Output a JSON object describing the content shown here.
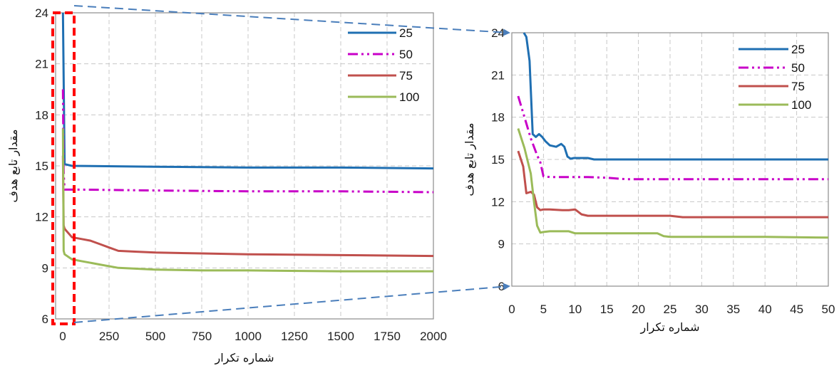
{
  "chart_data": [
    {
      "type": "line",
      "xlabel": "شماره تکرار",
      "ylabel": "مقدار تابع هدف",
      "xlim": [
        0,
        2000
      ],
      "ylim": [
        6,
        24
      ],
      "x_ticks": [
        "0",
        "250",
        "500",
        "750",
        "1000",
        "1250",
        "1500",
        "1750",
        "2000"
      ],
      "y_ticks": [
        "6",
        "9",
        "12",
        "15",
        "18",
        "21",
        "24"
      ],
      "grid": true,
      "legend_position": "top-right",
      "series": [
        {
          "name": "25",
          "color": "#1f6fb2",
          "dash": "solid",
          "x": [
            1,
            10,
            50,
            500,
            1000,
            1500,
            2000
          ],
          "y": [
            24,
            15.1,
            15.0,
            14.95,
            14.9,
            14.9,
            14.85
          ]
        },
        {
          "name": "50",
          "color": "#c800c8",
          "dash": "dashdotdot",
          "x": [
            1,
            5,
            10,
            100,
            500,
            1000,
            1500,
            2000
          ],
          "y": [
            19.5,
            14.6,
            13.6,
            13.6,
            13.55,
            13.5,
            13.5,
            13.45
          ]
        },
        {
          "name": "75",
          "color": "#c0504d",
          "dash": "solid",
          "x": [
            1,
            5,
            10,
            50,
            100,
            150,
            200,
            250,
            300,
            400,
            500,
            750,
            1000,
            1500,
            2000
          ],
          "y": [
            15.6,
            11.5,
            11.3,
            10.8,
            10.7,
            10.6,
            10.4,
            10.2,
            10.0,
            9.95,
            9.9,
            9.85,
            9.8,
            9.75,
            9.7
          ]
        },
        {
          "name": "100",
          "color": "#9bbb59",
          "dash": "solid",
          "x": [
            1,
            5,
            10,
            50,
            100,
            200,
            300,
            400,
            500,
            750,
            1000,
            1500,
            2000
          ],
          "y": [
            17.2,
            10.0,
            9.8,
            9.5,
            9.4,
            9.2,
            9.0,
            8.95,
            8.9,
            8.85,
            8.85,
            8.8,
            8.8
          ]
        }
      ]
    },
    {
      "type": "line",
      "xlabel": "شماره تکرار",
      "ylabel": "مقدار تابع هدف",
      "xlim": [
        0,
        50
      ],
      "ylim": [
        6,
        24
      ],
      "x_ticks": [
        "0",
        "5",
        "10",
        "15",
        "20",
        "25",
        "30",
        "35",
        "40",
        "45",
        "50"
      ],
      "y_ticks": [
        "6",
        "9",
        "12",
        "15",
        "18",
        "21",
        "24"
      ],
      "grid": true,
      "legend_position": "top-right",
      "series": [
        {
          "name": "25",
          "color": "#1f6fb2",
          "dash": "solid",
          "x": [
            1.9,
            2.3,
            2.8,
            3.3,
            3.8,
            4.3,
            4.8,
            5.3,
            6.0,
            7.0,
            7.8,
            8.3,
            8.8,
            9.3,
            9.8,
            10.5,
            12,
            13,
            20,
            30,
            40,
            50
          ],
          "y": [
            24,
            23.7,
            22.0,
            16.8,
            16.6,
            16.8,
            16.6,
            16.3,
            16.0,
            15.9,
            16.1,
            15.9,
            15.2,
            15.05,
            15.1,
            15.1,
            15.1,
            15.0,
            15.0,
            15.0,
            15.0,
            15.0
          ]
        },
        {
          "name": "50",
          "color": "#c800c8",
          "dash": "dashdotdot",
          "x": [
            1,
            2,
            3,
            4,
            4.5,
            5,
            6,
            8,
            10,
            12,
            15,
            18,
            20,
            25,
            30,
            40,
            50
          ],
          "y": [
            19.5,
            18.0,
            16.5,
            15.3,
            14.8,
            13.8,
            13.75,
            13.75,
            13.75,
            13.75,
            13.7,
            13.6,
            13.6,
            13.6,
            13.6,
            13.6,
            13.6
          ]
        },
        {
          "name": "75",
          "color": "#c0504d",
          "dash": "solid",
          "x": [
            1,
            1.8,
            2.3,
            3,
            3.5,
            4,
            4.5,
            5,
            6,
            8,
            9,
            10,
            11,
            12,
            14,
            20,
            25,
            27,
            30,
            40,
            50
          ],
          "y": [
            15.6,
            14.5,
            12.6,
            12.7,
            12.5,
            11.6,
            11.4,
            11.45,
            11.45,
            11.4,
            11.4,
            11.45,
            11.1,
            11.0,
            11.0,
            11.0,
            11.0,
            10.9,
            10.9,
            10.9,
            10.9
          ]
        },
        {
          "name": "100",
          "color": "#9bbb59",
          "dash": "solid",
          "x": [
            1,
            2,
            3,
            3.5,
            4,
            4.5,
            5,
            6,
            9,
            10,
            11,
            20,
            23,
            24,
            25,
            30,
            40,
            50
          ],
          "y": [
            17.2,
            15.8,
            14.0,
            12.0,
            10.3,
            9.8,
            9.85,
            9.9,
            9.9,
            9.75,
            9.75,
            9.75,
            9.75,
            9.55,
            9.5,
            9.5,
            9.5,
            9.45
          ]
        }
      ]
    }
  ]
}
